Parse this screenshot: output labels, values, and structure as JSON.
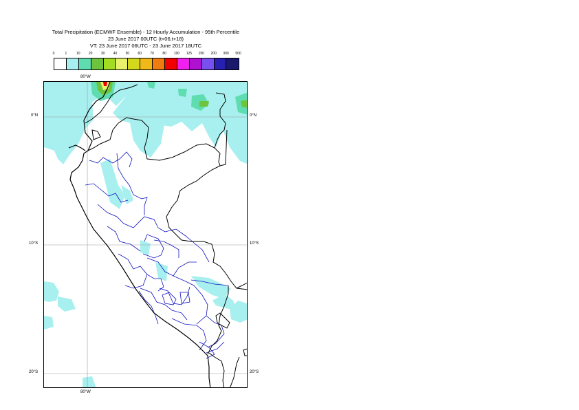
{
  "title": {
    "line1": "Total Precipitation (ECMWF Ensemble) - 12 Hourly Accumulation - 95th Percentile",
    "line2": "23 June 2017 00UTC (t+06,t+18)",
    "line3": "VT: 23 June 2017 06UTC - 23 June 2017 18UTC"
  },
  "legend": {
    "thresholds": [
      "0",
      "1",
      "10",
      "20",
      "30",
      "40",
      "50",
      "60",
      "70",
      "80",
      "100",
      "125",
      "150",
      "200",
      "300",
      "500"
    ],
    "colors": [
      "#ffffff",
      "#a8f0ef",
      "#5fdcb0",
      "#6ec43c",
      "#a4dc24",
      "#e8f06c",
      "#d4d81c",
      "#f0b818",
      "#f07c10",
      "#f00000",
      "#f020f0",
      "#b010d0",
      "#7850f0",
      "#2820b0",
      "#18186c"
    ]
  },
  "map": {
    "lat_labels": {
      "n0_left": "0°N",
      "n0_right": "0°N",
      "s10_left": "10°S",
      "s10_right": "10°S",
      "s20_left": "20°S",
      "s20_right": "20°S"
    },
    "lon_labels": {
      "top": "80°W",
      "bottom": "80°W"
    },
    "colors": {
      "coast": "#000000",
      "borders": "#000000",
      "regions": "#1010c0",
      "gridline": "#9a9a9a",
      "light_precip": "#a8f0ef",
      "moderate_precip": "#5fdcb0",
      "heavy_precip": "#6ec43c"
    }
  }
}
